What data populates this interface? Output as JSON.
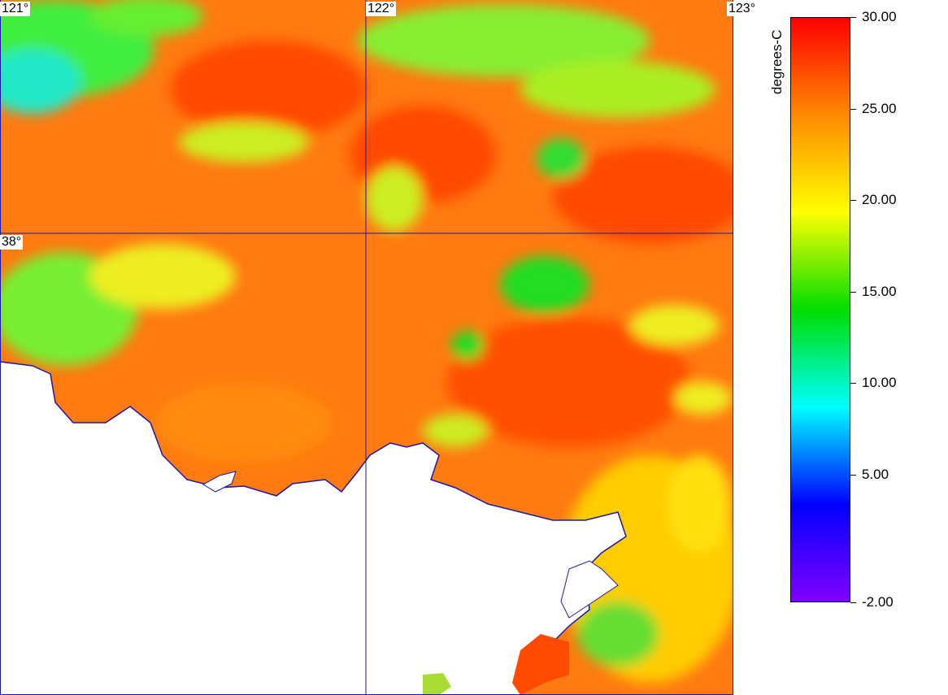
{
  "map": {
    "longitude_labels": [
      "121°",
      "122°",
      "123°"
    ],
    "latitude_labels": [
      "38°"
    ],
    "grid_color": "#1a1aa8",
    "land_color": "#ffffff",
    "coast_color": "#1a1aa8"
  },
  "colorbar": {
    "unit": "degrees-C",
    "min": -2.0,
    "max": 30.0,
    "tick_labels": [
      "30.00",
      "25.00",
      "20.00",
      "15.00",
      "10.00",
      "5.00",
      "-2.00"
    ],
    "colors": [
      "#ff0000",
      "#ff8a00",
      "#ffff00",
      "#00dd00",
      "#00ffff",
      "#0000ff",
      "#8000ff"
    ]
  }
}
